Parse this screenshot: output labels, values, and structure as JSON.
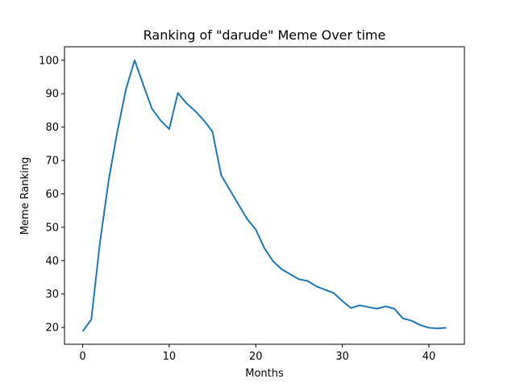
{
  "chart_data": {
    "type": "line",
    "title": "Ranking of \"darude\" Meme Over time",
    "xlabel": "Months",
    "ylabel": "Meme Ranking",
    "xlim": [
      -2.1,
      44.1
    ],
    "ylim": [
      14.95,
      104.05
    ],
    "xticks": [
      0,
      10,
      20,
      30,
      40
    ],
    "yticks": [
      20,
      30,
      40,
      50,
      60,
      70,
      80,
      90,
      100
    ],
    "grid": false,
    "line_color": "#1f77b4",
    "series": [
      {
        "x": [
          0,
          1,
          2,
          3,
          4,
          5,
          6,
          7,
          8,
          9,
          10,
          11,
          12,
          13,
          14,
          15,
          16,
          17,
          18,
          19,
          20,
          21,
          22,
          23,
          24,
          25,
          26,
          27,
          28,
          29,
          30,
          31,
          32,
          33,
          34,
          35,
          36,
          37,
          38,
          39,
          40,
          41,
          42
        ],
        "values": [
          18.8,
          22.4,
          45.5,
          64.0,
          78.6,
          91.3,
          100.0,
          92.7,
          85.5,
          82.0,
          79.4,
          90.2,
          87.1,
          84.8,
          82.0,
          78.6,
          65.6,
          61.2,
          56.8,
          52.5,
          49.3,
          43.7,
          39.8,
          37.4,
          35.9,
          34.4,
          33.9,
          32.3,
          31.3,
          30.3,
          27.9,
          25.8,
          26.6,
          26.1,
          25.6,
          26.3,
          25.6,
          22.7,
          22.0,
          20.7,
          19.9,
          19.7,
          19.9
        ]
      }
    ]
  }
}
